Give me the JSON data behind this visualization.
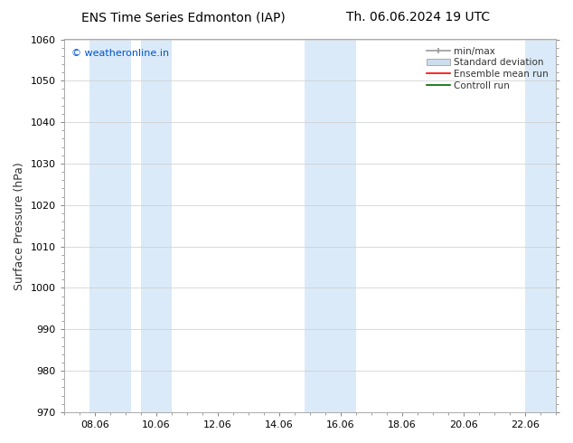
{
  "title_left": "ENS Time Series Edmonton (IAP)",
  "title_right": "Th. 06.06.2024 19 UTC",
  "ylabel": "Surface Pressure (hPa)",
  "ylim": [
    970,
    1060
  ],
  "yticks": [
    970,
    980,
    990,
    1000,
    1010,
    1020,
    1030,
    1040,
    1050,
    1060
  ],
  "xlim_start": 7.0,
  "xlim_end": 23.0,
  "xtick_labels": [
    "08.06",
    "10.06",
    "12.06",
    "14.06",
    "16.06",
    "18.06",
    "20.06",
    "22.06"
  ],
  "xtick_positions": [
    8,
    10,
    12,
    14,
    16,
    18,
    20,
    22
  ],
  "watermark": "© weatheronline.in",
  "watermark_color": "#0055cc",
  "bg_color": "#ffffff",
  "plot_bg_color": "#ffffff",
  "shaded_bands": [
    {
      "x_start": 7.83,
      "x_end": 9.17
    },
    {
      "x_start": 9.5,
      "x_end": 10.5
    },
    {
      "x_start": 14.83,
      "x_end": 15.5
    },
    {
      "x_start": 15.5,
      "x_end": 16.5
    },
    {
      "x_start": 22.0,
      "x_end": 23.0
    }
  ],
  "shaded_color": "#daeaf8",
  "legend_items": [
    {
      "label": "min/max",
      "color": "#999999",
      "style": "minmax"
    },
    {
      "label": "Standard deviation",
      "color": "#bbbbbb",
      "style": "stddev"
    },
    {
      "label": "Ensemble mean run",
      "color": "#ff0000",
      "style": "line"
    },
    {
      "label": "Controll run",
      "color": "#006600",
      "style": "line"
    }
  ],
  "title_fontsize": 10,
  "tick_fontsize": 8,
  "ylabel_fontsize": 9,
  "legend_fontsize": 7.5
}
